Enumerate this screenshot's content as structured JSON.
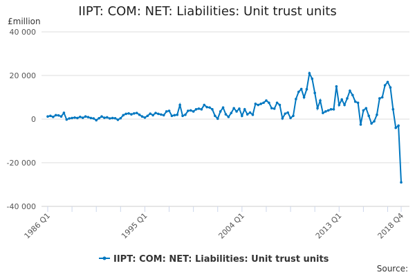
{
  "chart_data": {
    "type": "line",
    "title": "IIPT: COM: NET: Liabilities: Unit trust units",
    "ylabel": "£million",
    "ylim": [
      -40000,
      40000
    ],
    "yticks": [
      40000,
      20000,
      0,
      -20000,
      -40000
    ],
    "ytick_labels": [
      "40 000",
      "20 000",
      "0",
      "-20 000",
      "-40 000"
    ],
    "x_start": "1986 Q1",
    "x_end": "2018 Q4",
    "xtick_labels": [
      {
        "index": 0,
        "label": "1986 Q1"
      },
      {
        "index": 36,
        "label": "1995 Q1"
      },
      {
        "index": 72,
        "label": "2004 Q1"
      },
      {
        "index": 108,
        "label": "2013 Q1"
      },
      {
        "index": 131,
        "label": "2018 Q4"
      }
    ],
    "grid": true,
    "legend": "bottom",
    "color": "#0077c0",
    "series": [
      {
        "name": "IIPT: COM: NET: Liabilities: Unit trust units",
        "values": [
          1200,
          1500,
          1000,
          1800,
          1700,
          1200,
          2900,
          -200,
          300,
          500,
          700,
          500,
          1000,
          600,
          1200,
          900,
          500,
          300,
          -500,
          400,
          1200,
          600,
          800,
          300,
          500,
          400,
          -300,
          400,
          1800,
          2400,
          2600,
          2200,
          2600,
          2800,
          2000,
          1200,
          700,
          1500,
          2500,
          1800,
          2800,
          2400,
          2100,
          1800,
          3500,
          3800,
          1500,
          1800,
          2000,
          6500,
          1500,
          2000,
          3800,
          4000,
          3500,
          4500,
          4800,
          4500,
          6500,
          5500,
          5300,
          4500,
          1500,
          200,
          3500,
          5300,
          2200,
          1000,
          2800,
          5000,
          3500,
          4800,
          1500,
          4500,
          2200,
          3000,
          2000,
          7000,
          6500,
          7000,
          7500,
          8500,
          7500,
          5000,
          4800,
          7500,
          6500,
          300,
          2500,
          3000,
          500,
          1500,
          9200,
          12500,
          13800,
          10000,
          13700,
          21000,
          18500,
          12000,
          5000,
          8500,
          2800,
          3500,
          4000,
          4500,
          4500,
          15000,
          6500,
          9000,
          6500,
          9500,
          13000,
          11000,
          8000,
          7500,
          -2500,
          4000,
          5000,
          1500,
          -2000,
          -1000,
          2000,
          9500,
          10000,
          15500,
          17000,
          14500,
          4500,
          -4000,
          -3000,
          -29000
        ]
      }
    ]
  },
  "source_label": "Source:"
}
